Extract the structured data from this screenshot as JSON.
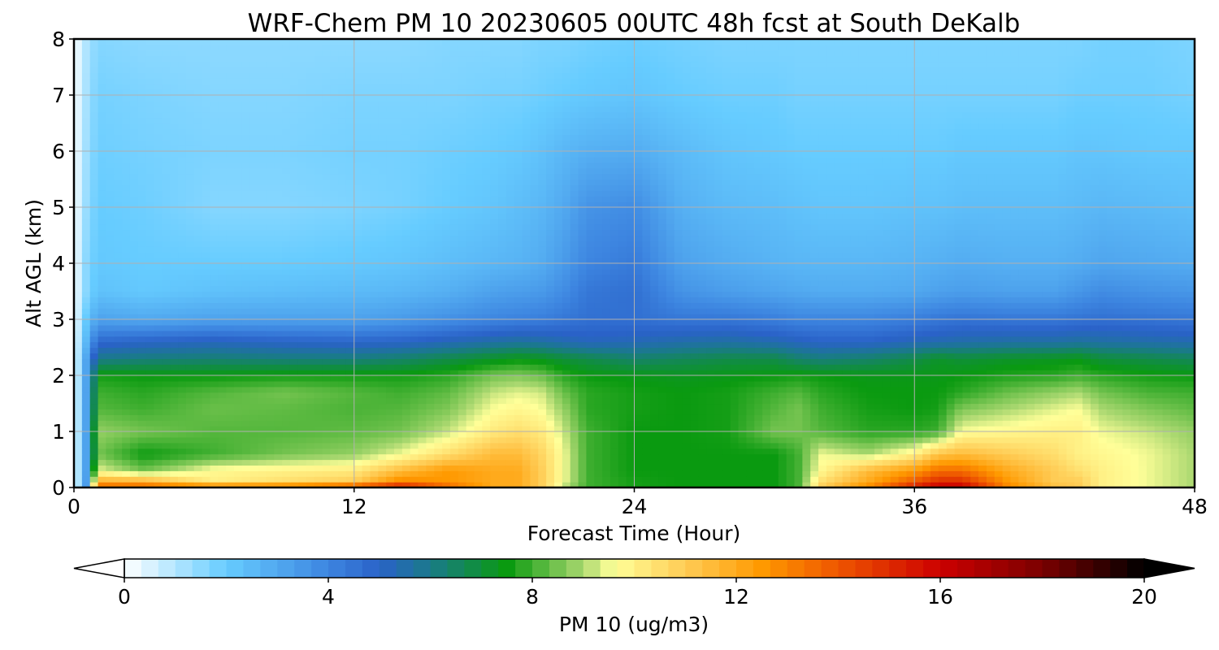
{
  "chart_data": {
    "type": "heatmap",
    "title": "WRF-Chem PM 10  20230605 00UTC 48h fcst at South DeKalb",
    "xlabel": "Forecast Time (Hour)",
    "ylabel": "Alt AGL (km)",
    "xlim": [
      0,
      48
    ],
    "ylim": [
      0,
      8
    ],
    "x_ticks": [
      0,
      12,
      24,
      36,
      48
    ],
    "y_ticks": [
      0,
      1,
      2,
      3,
      4,
      5,
      6,
      7,
      8
    ],
    "grid": true,
    "colorbar": {
      "label": "PM 10  (ug/m3)",
      "ticks": [
        0,
        4,
        8,
        12,
        16,
        20
      ],
      "range": [
        0,
        20
      ],
      "extend": "both",
      "colormap_stops": [
        {
          "v": 0,
          "c": "#ffffff"
        },
        {
          "v": 2,
          "c": "#66ccff"
        },
        {
          "v": 4,
          "c": "#3d85e0"
        },
        {
          "v": 5,
          "c": "#2a62c8"
        },
        {
          "v": 6,
          "c": "#1a7a8a"
        },
        {
          "v": 7.5,
          "c": "#0a9a10"
        },
        {
          "v": 9,
          "c": "#aad870"
        },
        {
          "v": 9.6,
          "c": "#ffff99"
        },
        {
          "v": 11,
          "c": "#ffcc55"
        },
        {
          "v": 12.5,
          "c": "#ff9900"
        },
        {
          "v": 14,
          "c": "#ee5500"
        },
        {
          "v": 16,
          "c": "#cc0000"
        },
        {
          "v": 18,
          "c": "#7a0000"
        },
        {
          "v": 20,
          "c": "#000000"
        }
      ]
    },
    "field": {
      "hours": [
        0,
        0.5,
        1,
        3,
        6,
        9,
        12,
        14,
        16,
        18,
        19,
        20,
        21,
        22,
        24,
        26,
        28,
        30,
        31,
        32,
        34,
        36,
        37,
        38,
        40,
        42,
        43,
        44,
        46,
        48
      ],
      "alt_km": [
        0,
        0.1,
        0.3,
        0.6,
        1.0,
        1.4,
        1.7,
        2.0,
        2.3,
        2.6,
        3.0,
        3.5,
        4.0,
        5.0,
        6.0,
        7.0,
        8.0
      ],
      "values": [
        [
          0,
          3,
          14,
          14,
          14,
          14,
          15,
          16,
          14,
          12,
          12,
          11,
          9,
          8,
          7.6,
          7.5,
          7.5,
          7.5,
          8,
          11,
          13,
          15.5,
          16.5,
          16.5,
          13,
          11.5,
          11,
          10,
          9.5,
          9
        ],
        [
          0,
          3,
          12,
          12,
          10,
          10.5,
          11,
          13,
          12.5,
          12,
          12,
          11,
          9.5,
          8,
          7.6,
          7.5,
          7.5,
          7.5,
          8,
          10.5,
          12,
          14,
          15,
          15,
          12.5,
          11,
          11,
          10,
          9.5,
          9
        ],
        [
          0,
          3,
          9.5,
          8.5,
          9.8,
          10,
          10.2,
          11.5,
          12.5,
          12,
          12,
          11,
          9.5,
          8,
          7.5,
          7.5,
          7.5,
          7.5,
          8,
          9.8,
          11.5,
          12.5,
          13.5,
          13.5,
          12,
          11,
          10.5,
          10,
          9.5,
          9
        ],
        [
          0,
          3,
          8.5,
          7.5,
          8,
          8.5,
          8.8,
          9.5,
          10.5,
          11.5,
          11.5,
          10.8,
          9.5,
          8,
          7.5,
          7.5,
          7.5,
          7.5,
          8,
          9.5,
          9,
          10,
          11.2,
          11.5,
          11,
          10.5,
          10,
          9.8,
          9.5,
          9
        ],
        [
          0,
          3,
          8.8,
          8.5,
          8.2,
          8.2,
          8.3,
          8.5,
          9.2,
          10.2,
          10.5,
          10.2,
          9.2,
          8,
          7.5,
          7.5,
          7.6,
          8.5,
          8.5,
          8.2,
          7.8,
          7.8,
          8,
          9.6,
          9.8,
          10,
          10,
          9.5,
          9.2,
          8.8
        ],
        [
          0,
          3,
          8.2,
          8,
          8.4,
          8.3,
          8.1,
          8.2,
          8.6,
          9.6,
          9.8,
          9.6,
          8.8,
          7.8,
          7.6,
          7.5,
          7.6,
          8.2,
          8.5,
          8,
          7.6,
          7.5,
          7.6,
          8.6,
          9,
          9.4,
          9.6,
          9,
          8.6,
          8.3
        ],
        [
          0,
          3,
          8,
          7.8,
          8.2,
          8.5,
          8.2,
          8,
          8.3,
          9.2,
          9.4,
          9.3,
          8.4,
          7.8,
          7.6,
          7.5,
          7.6,
          8,
          8.2,
          7.8,
          7.5,
          7.5,
          7.5,
          7.8,
          8.4,
          8.8,
          9,
          8.5,
          8.1,
          8
        ],
        [
          0,
          3,
          7.6,
          7.5,
          7.5,
          7.6,
          7.6,
          7.6,
          7.8,
          8.5,
          8.6,
          8.4,
          7.8,
          7.5,
          7.4,
          7.3,
          7.4,
          7.5,
          7.6,
          7.5,
          7.4,
          7.4,
          7.4,
          7.5,
          7.7,
          7.8,
          8,
          7.8,
          7.6,
          7.5
        ],
        [
          0,
          3,
          6,
          6.2,
          6.3,
          6.2,
          6.2,
          6.4,
          6.8,
          7.2,
          7.4,
          7.3,
          7,
          6.8,
          6.4,
          6.6,
          6.8,
          6.8,
          6.4,
          6.2,
          6.4,
          6.8,
          7.2,
          7,
          7.2,
          7.3,
          7.4,
          7,
          6.8,
          6.6
        ],
        [
          0,
          2.5,
          4.8,
          5,
          5.2,
          5,
          4.9,
          5,
          5.3,
          5.6,
          5.7,
          5.6,
          5.4,
          5.2,
          5.3,
          5.5,
          5.6,
          5.4,
          5.2,
          5,
          5,
          5.3,
          5.4,
          5.5,
          5.6,
          5.6,
          5.7,
          5.6,
          5.5,
          5.4
        ],
        [
          0,
          2,
          3.2,
          3,
          3.2,
          3.2,
          3.2,
          3.4,
          3.7,
          4,
          4.1,
          4.2,
          4.4,
          4.6,
          4.6,
          4.4,
          4.4,
          4.2,
          4,
          4,
          4,
          4.2,
          4.4,
          4.5,
          4.4,
          4.4,
          4.5,
          4.6,
          4.5,
          4.4
        ],
        [
          0,
          1.5,
          2.3,
          2.1,
          2.3,
          2.4,
          2.5,
          2.6,
          2.8,
          3.2,
          3.3,
          3.4,
          3.8,
          4.4,
          4.6,
          3.6,
          3.3,
          3.1,
          3,
          2.9,
          2.9,
          3,
          3.2,
          3.3,
          3.2,
          3.2,
          3.5,
          3.8,
          3.6,
          3.5
        ],
        [
          0,
          1.5,
          2.1,
          2,
          2,
          2,
          2.1,
          2.2,
          2.4,
          2.6,
          2.7,
          2.9,
          3.4,
          4,
          4.3,
          3.2,
          2.9,
          2.7,
          2.6,
          2.6,
          2.6,
          2.7,
          2.8,
          2.9,
          2.8,
          2.8,
          2.9,
          3.1,
          3,
          2.9
        ],
        [
          0,
          1.3,
          2,
          1.9,
          1.6,
          1.6,
          1.7,
          1.8,
          2,
          2.2,
          2.4,
          2.6,
          3,
          3.6,
          3.8,
          2.8,
          2.5,
          2.4,
          2.3,
          2.2,
          2.2,
          2.3,
          2.3,
          2.4,
          2.4,
          2.4,
          2.5,
          2.6,
          2.5,
          2.4
        ],
        [
          0,
          1.2,
          1.9,
          1.8,
          1.7,
          1.7,
          1.8,
          1.8,
          1.9,
          2,
          2.1,
          2.3,
          2.6,
          2.8,
          2.9,
          2.5,
          2.2,
          2.1,
          2,
          2,
          2,
          2,
          2,
          2.1,
          2.1,
          2.1,
          2.2,
          2.2,
          2.1,
          2.1
        ],
        [
          0,
          1.1,
          1.8,
          1.7,
          1.6,
          1.6,
          1.7,
          1.7,
          1.7,
          1.8,
          1.8,
          1.9,
          2,
          2.1,
          2.2,
          2,
          1.9,
          1.9,
          1.8,
          1.8,
          1.8,
          1.8,
          1.8,
          1.8,
          1.8,
          1.8,
          1.9,
          1.9,
          1.9,
          1.8
        ],
        [
          0,
          1,
          1.6,
          1.5,
          1.5,
          1.5,
          1.5,
          1.5,
          1.6,
          1.6,
          1.6,
          1.7,
          1.7,
          1.8,
          1.9,
          1.8,
          1.7,
          1.7,
          1.7,
          1.7,
          1.7,
          1.7,
          1.7,
          1.7,
          1.7,
          1.7,
          1.7,
          1.8,
          1.8,
          1.7
        ]
      ]
    }
  }
}
